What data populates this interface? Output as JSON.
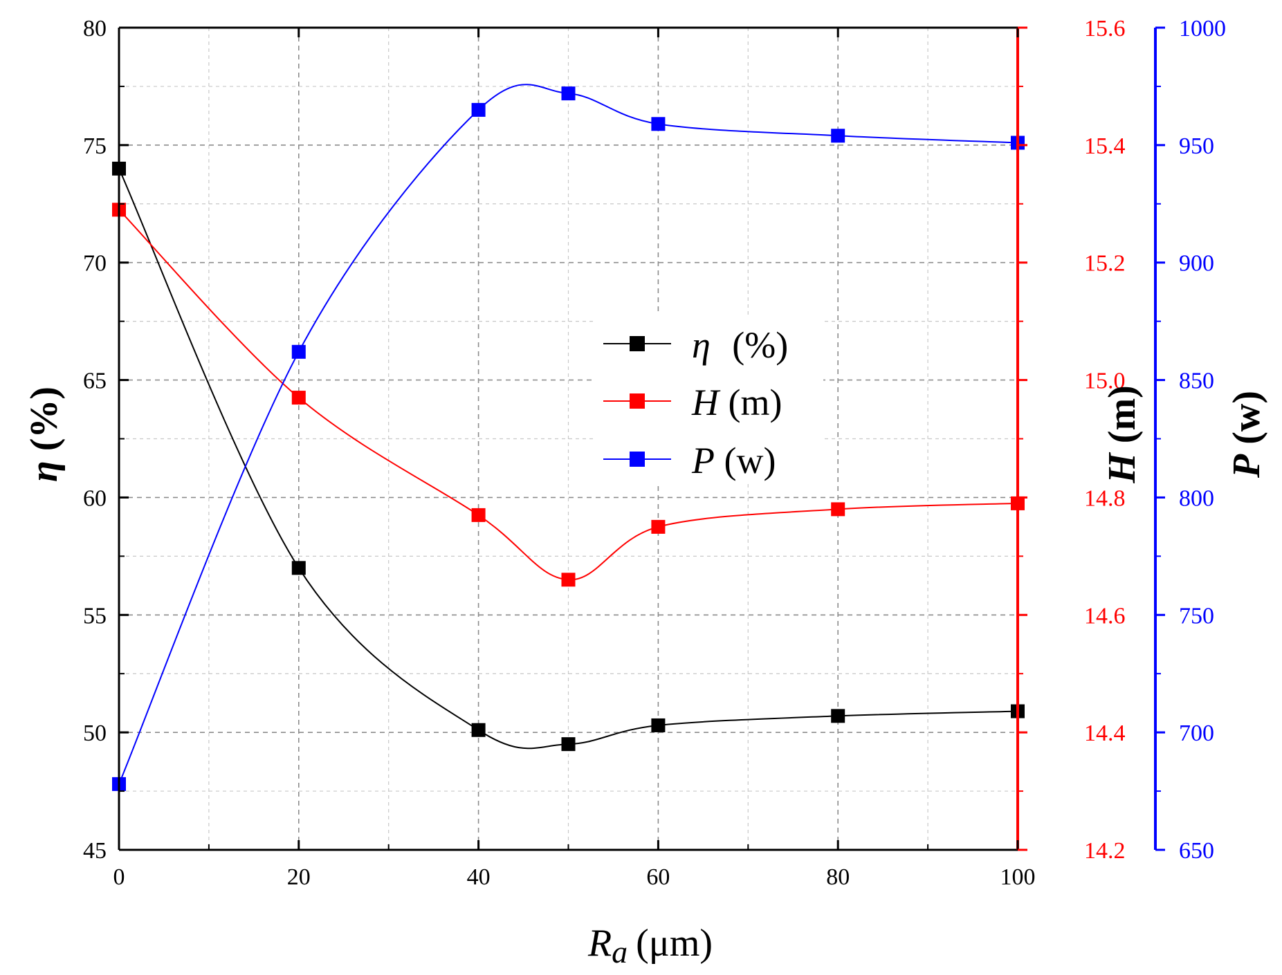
{
  "chart_data": {
    "type": "line",
    "x": [
      0,
      20,
      40,
      50,
      60,
      80,
      100
    ],
    "x_axis": {
      "symbol": "R",
      "subscript": "a",
      "unit": "(μm)",
      "range": [
        0,
        100
      ],
      "major_ticks": [
        0,
        20,
        40,
        60,
        80,
        100
      ],
      "tick_labels": [
        "0",
        "20",
        "40",
        "60",
        "80",
        "100"
      ]
    },
    "grid": true,
    "legend_position": "center",
    "series": [
      {
        "key": "eta",
        "name_symbol": "η",
        "name_unit": " (%)",
        "axis": "left",
        "color": "#000000",
        "values": [
          74.0,
          57.0,
          50.1,
          49.5,
          50.3,
          50.7,
          50.9
        ]
      },
      {
        "key": "H",
        "name_symbol": "H",
        "name_unit": " (m)",
        "axis": "right1",
        "color": "#ff0000",
        "values": [
          15.29,
          14.97,
          14.77,
          14.66,
          14.75,
          14.78,
          14.79
        ]
      },
      {
        "key": "P",
        "name_symbol": "P",
        "name_unit": " (w)",
        "axis": "right2",
        "color": "#0000ff",
        "values": [
          678,
          862,
          965,
          972,
          959,
          954,
          951
        ]
      }
    ],
    "axes": {
      "left": {
        "symbol": "η",
        "unit": "(%)",
        "color": "#000000",
        "range": [
          45,
          80
        ],
        "ticks": [
          45,
          50,
          55,
          60,
          65,
          70,
          75,
          80
        ],
        "tick_labels": [
          "45",
          "50",
          "55",
          "60",
          "65",
          "70",
          "75",
          "80"
        ]
      },
      "right1": {
        "symbol": "H",
        "unit": "(m)",
        "color": "#ff0000",
        "range": [
          14.2,
          15.6
        ],
        "ticks": [
          14.2,
          14.4,
          14.6,
          14.8,
          15.0,
          15.2,
          15.4,
          15.6
        ],
        "tick_labels": [
          "14.2",
          "14.4",
          "14.6",
          "14.8",
          "15.0",
          "15.2",
          "15.4",
          "15.6"
        ]
      },
      "right2": {
        "symbol": "P",
        "unit": "(w)",
        "color": "#0000ff",
        "range": [
          650,
          1000
        ],
        "ticks": [
          650,
          700,
          750,
          800,
          850,
          900,
          950,
          1000
        ],
        "tick_labels": [
          "650",
          "700",
          "750",
          "800",
          "850",
          "900",
          "950",
          "1000"
        ]
      }
    }
  }
}
